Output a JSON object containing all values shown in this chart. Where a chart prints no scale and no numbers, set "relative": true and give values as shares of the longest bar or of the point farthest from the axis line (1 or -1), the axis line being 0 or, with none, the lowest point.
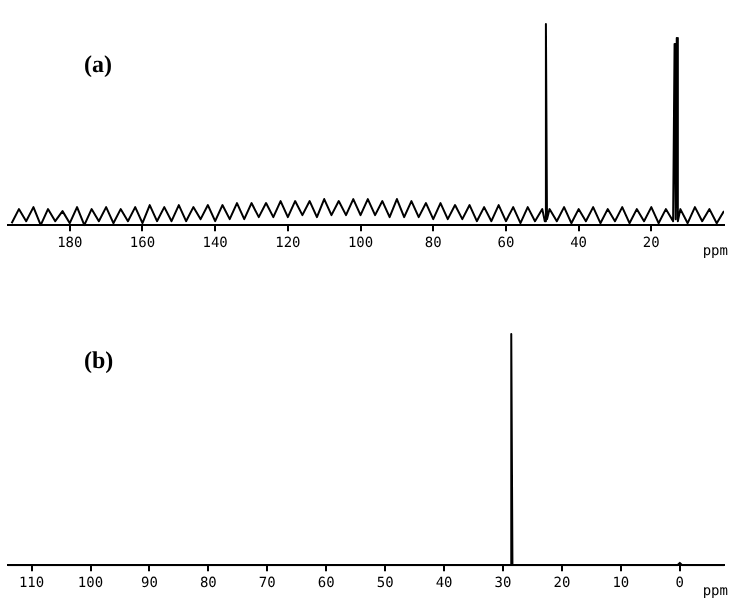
{
  "chart_data": [
    {
      "type": "line",
      "title": "(a)",
      "xlabel": "ppm",
      "relative": true,
      "marker": "none",
      "xlim": [
        197,
        0
      ],
      "xticks": [
        180,
        160,
        140,
        120,
        100,
        80,
        60,
        40,
        20
      ],
      "series": [
        {
          "color": "#000000",
          "x": [
            196,
            194,
            192,
            190,
            188,
            186,
            184,
            182,
            180,
            178,
            176,
            174,
            172,
            170,
            168,
            166,
            164,
            162,
            160,
            158,
            156,
            154,
            152,
            150,
            148,
            146,
            144,
            142,
            140,
            138,
            136,
            134,
            132,
            130,
            128,
            126,
            124,
            122,
            120,
            118,
            116,
            114,
            112,
            110,
            108,
            106,
            104,
            102,
            100,
            98,
            96,
            94,
            92,
            90,
            88,
            86,
            84,
            82,
            80,
            78,
            76,
            74,
            72,
            70,
            68,
            66,
            64,
            62,
            60,
            58,
            56,
            54,
            52,
            50,
            49.3,
            49,
            48.7,
            48,
            46,
            44,
            42,
            40,
            38,
            36,
            34,
            32,
            30,
            28,
            26,
            24,
            22,
            20,
            18,
            16,
            14,
            13.6,
            13.3,
            13.0,
            12.7,
            12,
            10,
            8,
            6,
            4,
            2,
            0
          ],
          "values": [
            0.01,
            0.08,
            0.02,
            0.09,
            0.0,
            0.08,
            0.02,
            0.07,
            0.01,
            0.09,
            0.0,
            0.08,
            0.02,
            0.09,
            0.01,
            0.08,
            0.02,
            0.09,
            0.01,
            0.1,
            0.02,
            0.09,
            0.02,
            0.1,
            0.02,
            0.09,
            0.03,
            0.1,
            0.02,
            0.1,
            0.03,
            0.11,
            0.03,
            0.11,
            0.04,
            0.11,
            0.04,
            0.12,
            0.04,
            0.12,
            0.05,
            0.12,
            0.04,
            0.13,
            0.05,
            0.12,
            0.05,
            0.13,
            0.05,
            0.13,
            0.05,
            0.12,
            0.04,
            0.13,
            0.04,
            0.12,
            0.04,
            0.11,
            0.03,
            0.11,
            0.03,
            0.1,
            0.03,
            0.1,
            0.02,
            0.09,
            0.02,
            0.1,
            0.02,
            0.09,
            0.01,
            0.09,
            0.02,
            0.08,
            0.02,
            1,
            0.03,
            0.08,
            0.02,
            0.09,
            0.01,
            0.08,
            0.02,
            0.09,
            0.01,
            0.08,
            0.02,
            0.09,
            0.01,
            0.08,
            0.02,
            0.09,
            0.01,
            0.08,
            0.02,
            0.9,
            0.03,
            0.93,
            0.02,
            0.08,
            0.01,
            0.09,
            0.02,
            0.08,
            0.01,
            0.07
          ]
        }
      ]
    },
    {
      "type": "line",
      "title": "(b)",
      "xlabel": "ppm",
      "relative": true,
      "marker": "none",
      "xlim": [
        114,
        -7.5
      ],
      "xticks": [
        110,
        100,
        90,
        80,
        70,
        60,
        50,
        40,
        30,
        20,
        10,
        0
      ],
      "series": [
        {
          "color": "#000000",
          "x": [
            114,
            28.8,
            28.6,
            28.4,
            0.4,
            0,
            -0.4,
            -7.5
          ],
          "values": [
            0,
            0,
            1,
            0,
            0,
            0.01,
            0,
            0
          ]
        }
      ]
    }
  ]
}
